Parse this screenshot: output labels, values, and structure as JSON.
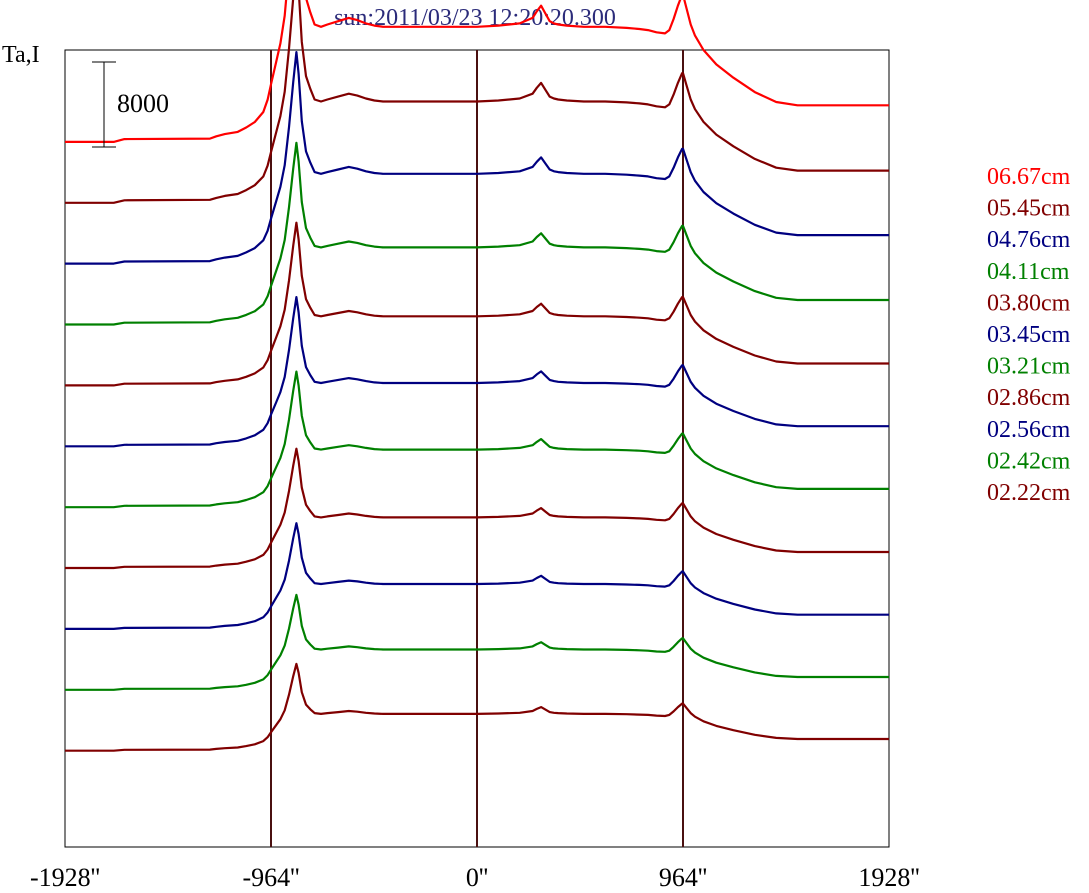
{
  "chart_data": {
    "type": "line",
    "title": "sun:2011/03/23 12:20:20.300",
    "ylabel": "Ta,I",
    "xlabel": "",
    "x_ticks": [
      -1928,
      -964,
      0,
      964,
      1928
    ],
    "x_tick_labels": [
      "-1928''",
      "-964''",
      "0''",
      "964''",
      "1928''"
    ],
    "xlim": [
      -1928,
      1928
    ],
    "vertical_lines": [
      -964,
      0,
      964
    ],
    "scale_bar": {
      "label": "8000",
      "value": 8000
    },
    "ylim": [
      0,
      72000
    ],
    "legend_placement": "right",
    "grid": false,
    "profile_x": [
      -1928,
      -1700,
      -1650,
      -1250,
      -1220,
      -1180,
      -1120,
      -1080,
      -1040,
      -1000,
      -980,
      -964,
      -940,
      -920,
      -900,
      -880,
      -860,
      -845,
      -835,
      -820,
      -800,
      -780,
      -760,
      -730,
      -700,
      -650,
      -600,
      -560,
      -520,
      -480,
      -440,
      -350,
      -300,
      -200,
      -100,
      0,
      100,
      200,
      260,
      280,
      300,
      320,
      340,
      360,
      380,
      420,
      500,
      600,
      700,
      760,
      800,
      840,
      880,
      900,
      920,
      940,
      960,
      964,
      980,
      1000,
      1020,
      1060,
      1120,
      1200,
      1300,
      1400,
      1500,
      1928
    ],
    "series": [
      {
        "name": "06.67cm",
        "color": "#ff0000",
        "offset": 63700,
        "amp": 1.0
      },
      {
        "name": "05.45cm",
        "color": "#800000",
        "offset": 58200,
        "amp": 0.88
      },
      {
        "name": "04.76cm",
        "color": "#000080",
        "offset": 52700,
        "amp": 0.78
      },
      {
        "name": "04.11cm",
        "color": "#008000",
        "offset": 47200,
        "amp": 0.67
      },
      {
        "name": "03.80cm",
        "color": "#800000",
        "offset": 41700,
        "amp": 0.6
      },
      {
        "name": "03.45cm",
        "color": "#000080",
        "offset": 36200,
        "amp": 0.55
      },
      {
        "name": "03.21cm",
        "color": "#008000",
        "offset": 30700,
        "amp": 0.5
      },
      {
        "name": "02.86cm",
        "color": "#800000",
        "offset": 25200,
        "amp": 0.44
      },
      {
        "name": "02.56cm",
        "color": "#000080",
        "offset": 19700,
        "amp": 0.39
      },
      {
        "name": "02.42cm",
        "color": "#008000",
        "offset": 14200,
        "amp": 0.35
      },
      {
        "name": "02.22cm",
        "color": "#800000",
        "offset": 8700,
        "amp": 0.32
      }
    ],
    "profile_y": [
      0,
      0,
      250,
      300,
      500,
      700,
      900,
      1300,
      1800,
      2700,
      3800,
      5200,
      7200,
      8900,
      11400,
      15800,
      21000,
      24500,
      22000,
      16500,
      13000,
      11700,
      10600,
      10400,
      10600,
      10900,
      11200,
      11000,
      10700,
      10500,
      10400,
      10400,
      10400,
      10400,
      10400,
      10400,
      10500,
      10700,
      11200,
      11800,
      12300,
      11600,
      10900,
      10700,
      10600,
      10500,
      10400,
      10400,
      10300,
      10200,
      10100,
      9900,
      9800,
      10100,
      11100,
      12300,
      13300,
      13300,
      12100,
      10600,
      9600,
      8300,
      7000,
      5800,
      4500,
      3600,
      3300,
      3300
    ],
    "profile_shape_note_removed": true
  }
}
